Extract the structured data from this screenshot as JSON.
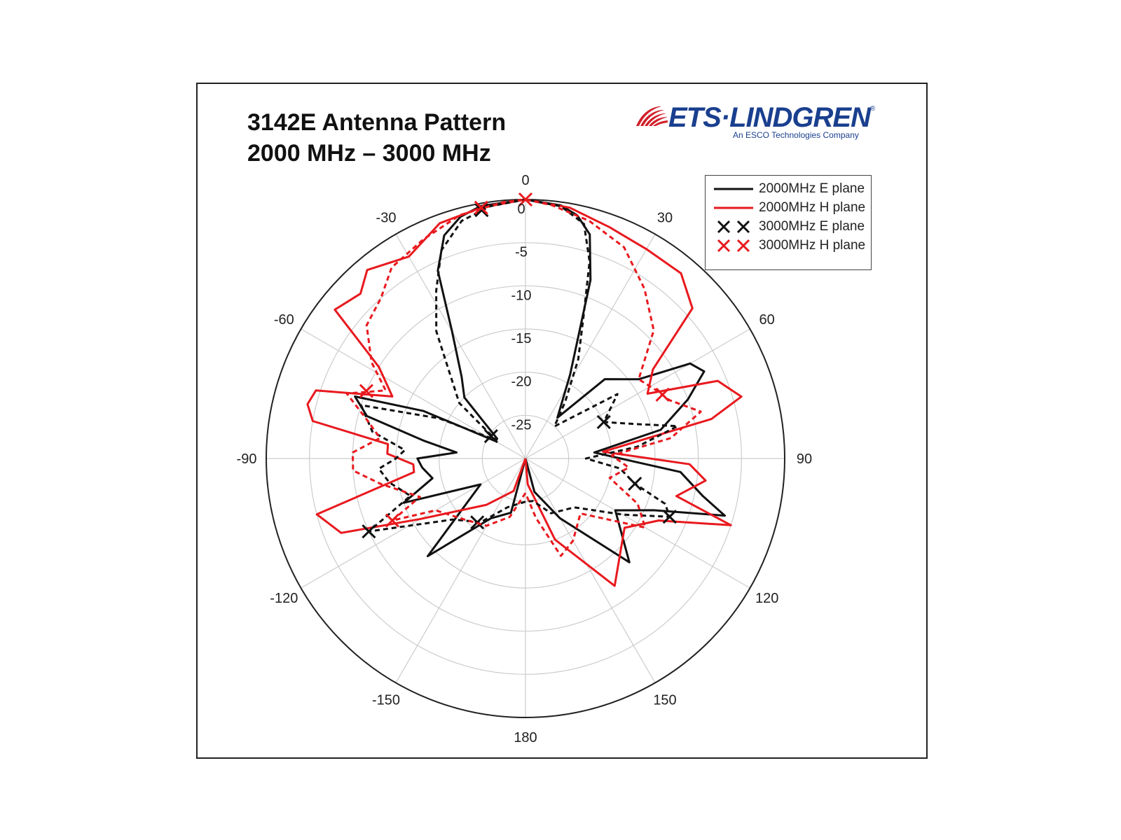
{
  "header": {
    "title_line1": "3142E Antenna Pattern",
    "title_line2": "2000 MHz – 3000 MHz"
  },
  "logo": {
    "name": "ETS·LINDGREN",
    "registered": "®",
    "subtitle": "An ESCO Technologies Company",
    "color": "#1a3f8f",
    "stripe_color": "#d1202a"
  },
  "colors": {
    "black_series": "#111111",
    "red_series": "#e8191e",
    "grid": "#cccccc"
  },
  "chart_data": {
    "type": "polar-line",
    "title": "3142E Antenna Pattern 2000 MHz – 3000 MHz",
    "angle_unit": "degrees",
    "angle_ticks": [
      "0",
      "30",
      "60",
      "90",
      "120",
      "150",
      "180",
      "-150",
      "-120",
      "-90",
      "-60",
      "-30"
    ],
    "radial_unit": "dB",
    "radial_range": [
      -30,
      0
    ],
    "radial_ticks": [
      "0",
      "-5",
      "-10",
      "-15",
      "-20",
      "-25"
    ],
    "grid": true,
    "legend_position": "top-right",
    "series": [
      {
        "name": "2000MHz E plane",
        "color": "#111111",
        "style": "solid",
        "marker": "none",
        "points": [
          [
            -180,
            -30
          ],
          [
            -165,
            -23.5
          ],
          [
            -150,
            -22
          ],
          [
            -135,
            -14
          ],
          [
            -120,
            -24
          ],
          [
            -110,
            -15
          ],
          [
            -102,
            -19
          ],
          [
            -95,
            -18
          ],
          [
            -90,
            -17.5
          ],
          [
            -85,
            -22
          ],
          [
            -80,
            -18
          ],
          [
            -75,
            -11
          ],
          [
            -70,
            -9
          ],
          [
            -65,
            -17
          ],
          [
            -60,
            -26
          ],
          [
            -55,
            -26
          ],
          [
            -45,
            -20
          ],
          [
            -38,
            -18
          ],
          [
            -30,
            -13
          ],
          [
            -25,
            -6
          ],
          [
            -20,
            -2.5
          ],
          [
            -15,
            -1
          ],
          [
            -10,
            -0.3
          ],
          [
            0,
            0
          ],
          [
            8,
            -0.4
          ],
          [
            12,
            -1.2
          ],
          [
            16,
            -3
          ],
          [
            20,
            -8
          ],
          [
            28,
            -19
          ],
          [
            38,
            -24
          ],
          [
            45,
            -17
          ],
          [
            55,
            -14
          ],
          [
            60,
            -8
          ],
          [
            64,
            -7
          ],
          [
            70,
            -10
          ],
          [
            78,
            -14
          ],
          [
            85,
            -22
          ],
          [
            90,
            -19
          ],
          [
            95,
            -12
          ],
          [
            102,
            -9
          ],
          [
            106,
            -6
          ],
          [
            112,
            -14
          ],
          [
            120,
            -18
          ],
          [
            135,
            -13
          ],
          [
            150,
            -22
          ],
          [
            165,
            -26
          ],
          [
            180,
            -30
          ]
        ]
      },
      {
        "name": "2000MHz H plane",
        "color": "#e8191e",
        "style": "solid",
        "marker": "none",
        "points": [
          [
            -180,
            -30
          ],
          [
            -160,
            -26
          ],
          [
            -140,
            -23
          ],
          [
            -120,
            -16
          ],
          [
            -112,
            -7
          ],
          [
            -105,
            -5
          ],
          [
            -97,
            -17
          ],
          [
            -93,
            -17
          ],
          [
            -88,
            -14
          ],
          [
            -84,
            -14
          ],
          [
            -80,
            -5
          ],
          [
            -76,
            -4
          ],
          [
            -72,
            -4.5
          ],
          [
            -65,
            -13
          ],
          [
            -58,
            -10
          ],
          [
            -52,
            -2
          ],
          [
            -45,
            -3
          ],
          [
            -40,
            -1.5
          ],
          [
            -30,
            -3
          ],
          [
            -20,
            -1
          ],
          [
            -10,
            -0.5
          ],
          [
            0,
            0
          ],
          [
            10,
            -0.5
          ],
          [
            20,
            -1.5
          ],
          [
            30,
            -2
          ],
          [
            40,
            -2
          ],
          [
            48,
            -4
          ],
          [
            55,
            -12
          ],
          [
            62,
            -14
          ],
          [
            68,
            -6
          ],
          [
            74,
            -4
          ],
          [
            78,
            -8
          ],
          [
            85,
            -21
          ],
          [
            92,
            -11
          ],
          [
            97,
            -9
          ],
          [
            104,
            -12
          ],
          [
            108,
            -5
          ],
          [
            115,
            -13
          ],
          [
            125,
            -16
          ],
          [
            145,
            -12
          ],
          [
            160,
            -20
          ],
          [
            175,
            -27
          ],
          [
            180,
            -30
          ]
        ]
      },
      {
        "name": "3000MHz E plane",
        "color": "#111111",
        "style": "dashed",
        "marker": "x",
        "marker_angles": [
          -143,
          -115,
          -57,
          -10,
          65,
          103,
          112
        ],
        "points": [
          [
            -180,
            -25
          ],
          [
            -160,
            -24
          ],
          [
            -145,
            -21
          ],
          [
            -130,
            -19
          ],
          [
            -115,
            -10
          ],
          [
            -108,
            -16
          ],
          [
            -100,
            -14
          ],
          [
            -94,
            -13
          ],
          [
            -90,
            -15
          ],
          [
            -86,
            -16
          ],
          [
            -80,
            -12
          ],
          [
            -72,
            -10
          ],
          [
            -65,
            -19
          ],
          [
            -58,
            -26
          ],
          [
            -50,
            -20
          ],
          [
            -42,
            -17
          ],
          [
            -35,
            -12
          ],
          [
            -28,
            -8
          ],
          [
            -22,
            -4
          ],
          [
            -15,
            -1.5
          ],
          [
            -8,
            -0.5
          ],
          [
            0,
            0
          ],
          [
            8,
            -0.5
          ],
          [
            14,
            -2
          ],
          [
            18,
            -6
          ],
          [
            22,
            -12
          ],
          [
            28,
            -17
          ],
          [
            35,
            -22
          ],
          [
            42,
            -25
          ],
          [
            55,
            -17
          ],
          [
            65,
            -20
          ],
          [
            72,
            -17
          ],
          [
            78,
            -12
          ],
          [
            84,
            -17
          ],
          [
            90,
            -23
          ],
          [
            96,
            -19
          ],
          [
            103,
            -17
          ],
          [
            108,
            -13
          ],
          [
            112,
            -12
          ],
          [
            120,
            -17
          ],
          [
            135,
            -22
          ],
          [
            155,
            -23
          ],
          [
            170,
            -25
          ],
          [
            180,
            -25
          ]
        ]
      },
      {
        "name": "3000MHz H plane",
        "color": "#e8191e",
        "style": "dashed",
        "marker": "x",
        "marker_angles": [
          -115,
          -67,
          -10,
          0,
          65
        ],
        "points": [
          [
            -180,
            -26
          ],
          [
            -165,
            -23
          ],
          [
            -150,
            -21
          ],
          [
            -135,
            -20
          ],
          [
            -120,
            -18
          ],
          [
            -115,
            -13
          ],
          [
            -110,
            -17
          ],
          [
            -100,
            -13
          ],
          [
            -94,
            -10
          ],
          [
            -88,
            -10
          ],
          [
            -82,
            -13
          ],
          [
            -76,
            -11
          ],
          [
            -70,
            -8
          ],
          [
            -64,
            -12
          ],
          [
            -58,
            -9
          ],
          [
            -50,
            -6
          ],
          [
            -42,
            -5
          ],
          [
            -35,
            -3
          ],
          [
            -25,
            -2
          ],
          [
            -15,
            -0.8
          ],
          [
            -5,
            -0.2
          ],
          [
            0,
            0
          ],
          [
            6,
            -0.5
          ],
          [
            15,
            -1.5
          ],
          [
            25,
            -3
          ],
          [
            35,
            -6
          ],
          [
            45,
            -9
          ],
          [
            55,
            -14
          ],
          [
            62,
            -13
          ],
          [
            68,
            -12
          ],
          [
            75,
            -9
          ],
          [
            82,
            -13
          ],
          [
            88,
            -20
          ],
          [
            95,
            -18
          ],
          [
            103,
            -20
          ],
          [
            112,
            -16
          ],
          [
            120,
            -14
          ],
          [
            135,
            -21
          ],
          [
            150,
            -19
          ],
          [
            160,
            -18
          ],
          [
            170,
            -23
          ],
          [
            180,
            -26
          ]
        ]
      }
    ]
  }
}
